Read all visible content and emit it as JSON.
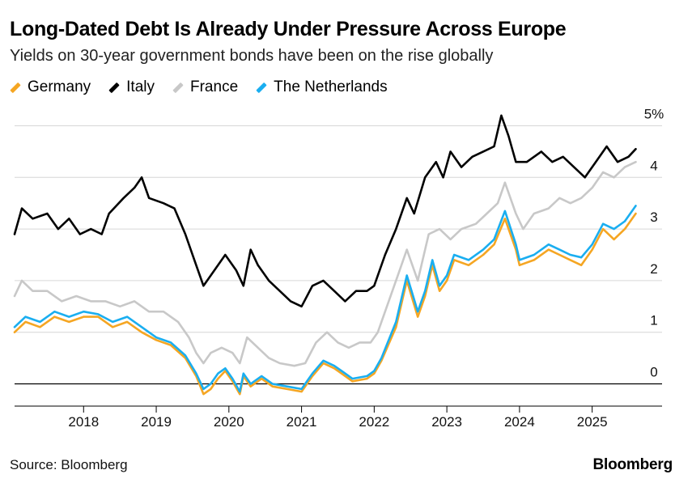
{
  "title": "Long-Dated Debt Is Already Under Pressure Across Europe",
  "subtitle": "Yields on 30-year government bonds have been on the rise globally",
  "source": "Source: Bloomberg",
  "brand": "Bloomberg",
  "chart_data": {
    "type": "line",
    "title": "Long-Dated Debt Is Already Under Pressure Across Europe",
    "xlabel": "",
    "ylabel": "",
    "y_unit": "%",
    "ylim": [
      -0.4,
      5.4
    ],
    "xlim": [
      2017.05,
      2025.65
    ],
    "x_ticks": [
      2018,
      2019,
      2020,
      2021,
      2022,
      2023,
      2024,
      2025
    ],
    "y_ticks": [
      0,
      1,
      2,
      3,
      4,
      5
    ],
    "y_tick_labels": [
      "0",
      "1",
      "2",
      "3",
      "4",
      "5%"
    ],
    "grid": true,
    "legend_position": "top-left",
    "series": [
      {
        "name": "Germany",
        "color": "#f5a623",
        "points": [
          [
            2017.05,
            1.0
          ],
          [
            2017.2,
            1.2
          ],
          [
            2017.4,
            1.1
          ],
          [
            2017.6,
            1.3
          ],
          [
            2017.8,
            1.2
          ],
          [
            2018.0,
            1.3
          ],
          [
            2018.2,
            1.3
          ],
          [
            2018.4,
            1.1
          ],
          [
            2018.6,
            1.2
          ],
          [
            2018.8,
            1.0
          ],
          [
            2019.0,
            0.85
          ],
          [
            2019.2,
            0.75
          ],
          [
            2019.4,
            0.5
          ],
          [
            2019.55,
            0.15
          ],
          [
            2019.65,
            -0.2
          ],
          [
            2019.75,
            -0.1
          ],
          [
            2019.85,
            0.1
          ],
          [
            2019.95,
            0.25
          ],
          [
            2020.05,
            0.05
          ],
          [
            2020.15,
            -0.2
          ],
          [
            2020.2,
            0.15
          ],
          [
            2020.3,
            -0.05
          ],
          [
            2020.45,
            0.1
          ],
          [
            2020.6,
            -0.05
          ],
          [
            2020.8,
            -0.1
          ],
          [
            2021.0,
            -0.15
          ],
          [
            2021.15,
            0.15
          ],
          [
            2021.3,
            0.4
          ],
          [
            2021.45,
            0.3
          ],
          [
            2021.55,
            0.2
          ],
          [
            2021.7,
            0.05
          ],
          [
            2021.9,
            0.1
          ],
          [
            2022.0,
            0.2
          ],
          [
            2022.1,
            0.45
          ],
          [
            2022.3,
            1.1
          ],
          [
            2022.45,
            2.0
          ],
          [
            2022.6,
            1.3
          ],
          [
            2022.7,
            1.7
          ],
          [
            2022.8,
            2.3
          ],
          [
            2022.9,
            1.8
          ],
          [
            2023.0,
            2.0
          ],
          [
            2023.1,
            2.4
          ],
          [
            2023.3,
            2.3
          ],
          [
            2023.5,
            2.5
          ],
          [
            2023.65,
            2.7
          ],
          [
            2023.8,
            3.2
          ],
          [
            2023.95,
            2.6
          ],
          [
            2024.0,
            2.3
          ],
          [
            2024.2,
            2.4
          ],
          [
            2024.4,
            2.6
          ],
          [
            2024.55,
            2.5
          ],
          [
            2024.7,
            2.4
          ],
          [
            2024.85,
            2.3
          ],
          [
            2025.0,
            2.6
          ],
          [
            2025.15,
            3.0
          ],
          [
            2025.3,
            2.8
          ],
          [
            2025.45,
            3.0
          ],
          [
            2025.6,
            3.3
          ]
        ]
      },
      {
        "name": "Italy",
        "color": "#000000",
        "points": [
          [
            2017.05,
            2.9
          ],
          [
            2017.15,
            3.4
          ],
          [
            2017.3,
            3.2
          ],
          [
            2017.5,
            3.3
          ],
          [
            2017.65,
            3.0
          ],
          [
            2017.8,
            3.2
          ],
          [
            2017.95,
            2.9
          ],
          [
            2018.1,
            3.0
          ],
          [
            2018.25,
            2.9
          ],
          [
            2018.35,
            3.3
          ],
          [
            2018.55,
            3.6
          ],
          [
            2018.7,
            3.8
          ],
          [
            2018.8,
            4.0
          ],
          [
            2018.9,
            3.6
          ],
          [
            2019.1,
            3.5
          ],
          [
            2019.25,
            3.4
          ],
          [
            2019.4,
            2.9
          ],
          [
            2019.55,
            2.3
          ],
          [
            2019.65,
            1.9
          ],
          [
            2019.8,
            2.2
          ],
          [
            2019.95,
            2.5
          ],
          [
            2020.1,
            2.2
          ],
          [
            2020.2,
            1.9
          ],
          [
            2020.3,
            2.6
          ],
          [
            2020.4,
            2.3
          ],
          [
            2020.55,
            2.0
          ],
          [
            2020.7,
            1.8
          ],
          [
            2020.85,
            1.6
          ],
          [
            2021.0,
            1.5
          ],
          [
            2021.15,
            1.9
          ],
          [
            2021.3,
            2.0
          ],
          [
            2021.45,
            1.8
          ],
          [
            2021.6,
            1.6
          ],
          [
            2021.75,
            1.8
          ],
          [
            2021.9,
            1.8
          ],
          [
            2022.0,
            1.9
          ],
          [
            2022.15,
            2.5
          ],
          [
            2022.3,
            3.0
          ],
          [
            2022.45,
            3.6
          ],
          [
            2022.55,
            3.3
          ],
          [
            2022.7,
            4.0
          ],
          [
            2022.85,
            4.3
          ],
          [
            2022.95,
            4.0
          ],
          [
            2023.05,
            4.5
          ],
          [
            2023.2,
            4.2
          ],
          [
            2023.35,
            4.4
          ],
          [
            2023.5,
            4.5
          ],
          [
            2023.65,
            4.6
          ],
          [
            2023.75,
            5.2
          ],
          [
            2023.85,
            4.8
          ],
          [
            2023.95,
            4.3
          ],
          [
            2024.1,
            4.3
          ],
          [
            2024.3,
            4.5
          ],
          [
            2024.45,
            4.3
          ],
          [
            2024.6,
            4.4
          ],
          [
            2024.75,
            4.2
          ],
          [
            2024.9,
            4.0
          ],
          [
            2025.05,
            4.3
          ],
          [
            2025.2,
            4.6
          ],
          [
            2025.35,
            4.3
          ],
          [
            2025.5,
            4.4
          ],
          [
            2025.6,
            4.55
          ]
        ]
      },
      {
        "name": "France",
        "color": "#c8c8c8",
        "points": [
          [
            2017.05,
            1.7
          ],
          [
            2017.15,
            2.0
          ],
          [
            2017.3,
            1.8
          ],
          [
            2017.5,
            1.8
          ],
          [
            2017.7,
            1.6
          ],
          [
            2017.9,
            1.7
          ],
          [
            2018.1,
            1.6
          ],
          [
            2018.3,
            1.6
          ],
          [
            2018.5,
            1.5
          ],
          [
            2018.7,
            1.6
          ],
          [
            2018.9,
            1.4
          ],
          [
            2019.1,
            1.4
          ],
          [
            2019.3,
            1.2
          ],
          [
            2019.45,
            0.9
          ],
          [
            2019.55,
            0.6
          ],
          [
            2019.65,
            0.4
          ],
          [
            2019.75,
            0.6
          ],
          [
            2019.9,
            0.7
          ],
          [
            2020.05,
            0.6
          ],
          [
            2020.15,
            0.4
          ],
          [
            2020.25,
            0.9
          ],
          [
            2020.4,
            0.7
          ],
          [
            2020.55,
            0.5
          ],
          [
            2020.7,
            0.4
          ],
          [
            2020.9,
            0.35
          ],
          [
            2021.05,
            0.4
          ],
          [
            2021.2,
            0.8
          ],
          [
            2021.35,
            1.0
          ],
          [
            2021.5,
            0.8
          ],
          [
            2021.65,
            0.7
          ],
          [
            2021.8,
            0.8
          ],
          [
            2021.95,
            0.8
          ],
          [
            2022.05,
            1.0
          ],
          [
            2022.2,
            1.6
          ],
          [
            2022.35,
            2.2
          ],
          [
            2022.45,
            2.6
          ],
          [
            2022.6,
            2.0
          ],
          [
            2022.75,
            2.9
          ],
          [
            2022.9,
            3.0
          ],
          [
            2023.05,
            2.8
          ],
          [
            2023.2,
            3.0
          ],
          [
            2023.4,
            3.1
          ],
          [
            2023.55,
            3.3
          ],
          [
            2023.7,
            3.5
          ],
          [
            2023.8,
            3.9
          ],
          [
            2023.95,
            3.3
          ],
          [
            2024.05,
            3.0
          ],
          [
            2024.2,
            3.3
          ],
          [
            2024.4,
            3.4
          ],
          [
            2024.55,
            3.6
          ],
          [
            2024.7,
            3.5
          ],
          [
            2024.85,
            3.6
          ],
          [
            2025.0,
            3.8
          ],
          [
            2025.15,
            4.1
          ],
          [
            2025.3,
            4.0
          ],
          [
            2025.45,
            4.2
          ],
          [
            2025.6,
            4.3
          ]
        ]
      },
      {
        "name": "The Netherlands",
        "color": "#1aaef0",
        "points": [
          [
            2017.05,
            1.1
          ],
          [
            2017.2,
            1.3
          ],
          [
            2017.4,
            1.2
          ],
          [
            2017.6,
            1.4
          ],
          [
            2017.8,
            1.3
          ],
          [
            2018.0,
            1.4
          ],
          [
            2018.2,
            1.35
          ],
          [
            2018.4,
            1.2
          ],
          [
            2018.6,
            1.3
          ],
          [
            2018.8,
            1.1
          ],
          [
            2019.0,
            0.9
          ],
          [
            2019.2,
            0.8
          ],
          [
            2019.4,
            0.55
          ],
          [
            2019.55,
            0.2
          ],
          [
            2019.65,
            -0.1
          ],
          [
            2019.75,
            0.0
          ],
          [
            2019.85,
            0.2
          ],
          [
            2019.95,
            0.3
          ],
          [
            2020.05,
            0.1
          ],
          [
            2020.15,
            -0.15
          ],
          [
            2020.2,
            0.2
          ],
          [
            2020.3,
            0.0
          ],
          [
            2020.45,
            0.15
          ],
          [
            2020.6,
            0.0
          ],
          [
            2020.8,
            -0.05
          ],
          [
            2021.0,
            -0.1
          ],
          [
            2021.15,
            0.2
          ],
          [
            2021.3,
            0.45
          ],
          [
            2021.45,
            0.35
          ],
          [
            2021.55,
            0.25
          ],
          [
            2021.7,
            0.1
          ],
          [
            2021.9,
            0.15
          ],
          [
            2022.0,
            0.25
          ],
          [
            2022.1,
            0.5
          ],
          [
            2022.3,
            1.2
          ],
          [
            2022.45,
            2.1
          ],
          [
            2022.6,
            1.4
          ],
          [
            2022.7,
            1.8
          ],
          [
            2022.8,
            2.4
          ],
          [
            2022.9,
            1.9
          ],
          [
            2023.0,
            2.1
          ],
          [
            2023.1,
            2.5
          ],
          [
            2023.3,
            2.4
          ],
          [
            2023.5,
            2.6
          ],
          [
            2023.65,
            2.8
          ],
          [
            2023.8,
            3.35
          ],
          [
            2023.95,
            2.7
          ],
          [
            2024.0,
            2.4
          ],
          [
            2024.2,
            2.5
          ],
          [
            2024.4,
            2.7
          ],
          [
            2024.55,
            2.6
          ],
          [
            2024.7,
            2.5
          ],
          [
            2024.85,
            2.45
          ],
          [
            2025.0,
            2.7
          ],
          [
            2025.15,
            3.1
          ],
          [
            2025.3,
            3.0
          ],
          [
            2025.45,
            3.15
          ],
          [
            2025.6,
            3.45
          ]
        ]
      }
    ]
  }
}
